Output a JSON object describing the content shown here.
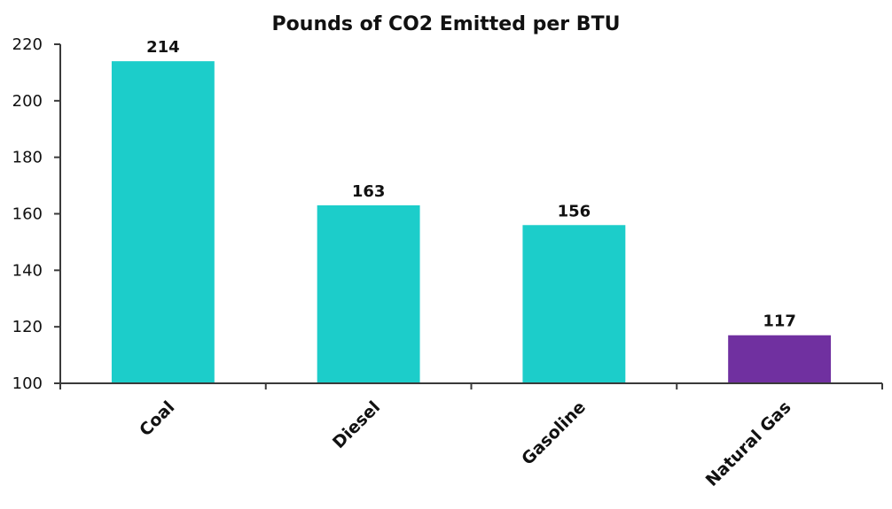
{
  "chart_data": {
    "type": "bar",
    "title": "Pounds of CO2 Emitted per BTU",
    "xlabel": "",
    "ylabel": "",
    "categories": [
      "Coal",
      "Diesel",
      "Gasoline",
      "Natural Gas"
    ],
    "values": [
      214,
      163,
      156,
      117
    ],
    "data_labels": [
      "214",
      "163",
      "156",
      "117"
    ],
    "ylim": [
      100,
      220
    ],
    "yticks": [
      100,
      120,
      140,
      160,
      180,
      200,
      220
    ],
    "grid": false,
    "legend": "none",
    "bar_colors": [
      "#1CCDCA",
      "#1CCDCA",
      "#1CCDCA",
      "#7030A0"
    ]
  }
}
